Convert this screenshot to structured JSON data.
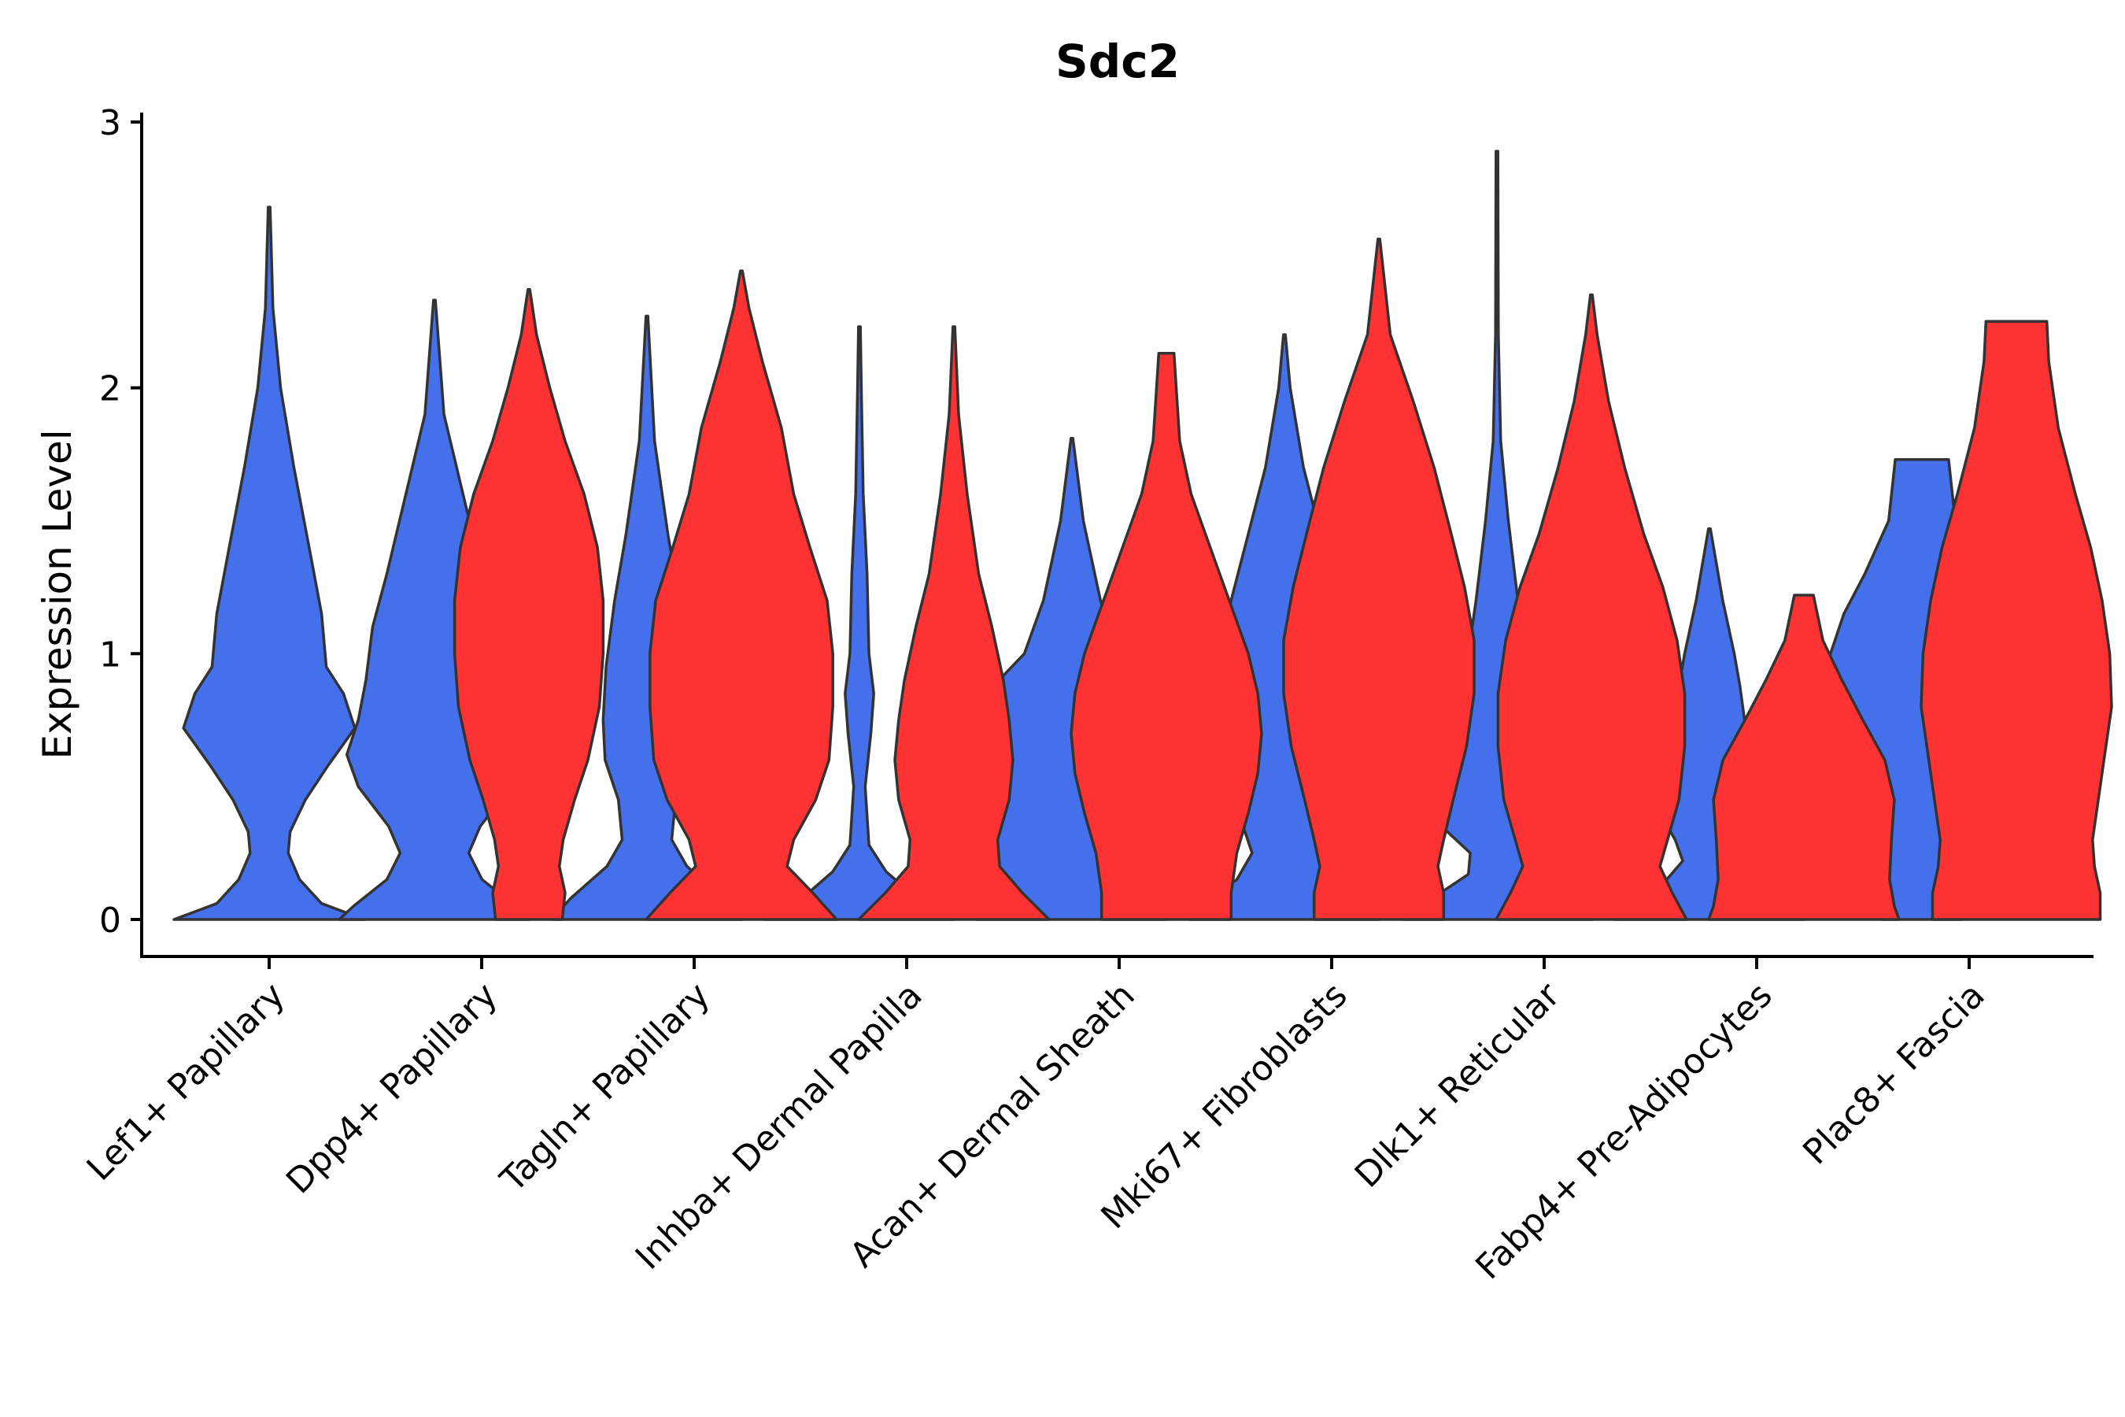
{
  "chart_data": {
    "type": "violin",
    "title": "Sdc2",
    "xlabel": "",
    "ylabel": "Expression Level",
    "ylim": [
      -0.14,
      3.05
    ],
    "yticks": [
      0,
      1,
      2,
      3
    ],
    "grid": false,
    "legend": "none",
    "groups": [
      "Lef1+ Papillary",
      "Dpp4+ Papillary",
      "Tagln+ Papillary",
      "Inhba+ Dermal Papilla",
      "Acan+ Dermal Sheath",
      "Mki67+ Fibroblasts",
      "Dlk1+ Reticular",
      "Fabp4+ Pre-Adipocytes",
      "Plac8+ Fascia"
    ],
    "series": [
      {
        "name": "blue",
        "color": "#4470EC",
        "violins": [
          {
            "group": "Lef1+ Papillary",
            "max": 2.68,
            "profile": [
              [
                0,
                1.0
              ],
              [
                0.06,
                0.55
              ],
              [
                0.15,
                0.32
              ],
              [
                0.25,
                0.2
              ],
              [
                0.33,
                0.22
              ],
              [
                0.45,
                0.38
              ],
              [
                0.58,
                0.62
              ],
              [
                0.72,
                0.9
              ],
              [
                0.85,
                0.78
              ],
              [
                0.95,
                0.6
              ],
              [
                1.15,
                0.55
              ],
              [
                1.4,
                0.42
              ],
              [
                1.7,
                0.26
              ],
              [
                2.0,
                0.12
              ],
              [
                2.3,
                0.04
              ],
              [
                2.68,
                0.01
              ]
            ]
          },
          {
            "group": "Dpp4+ Papillary",
            "max": 2.33,
            "profile": [
              [
                0,
                1.0
              ],
              [
                0.05,
                0.85
              ],
              [
                0.15,
                0.5
              ],
              [
                0.25,
                0.36
              ],
              [
                0.35,
                0.48
              ],
              [
                0.5,
                0.8
              ],
              [
                0.62,
                0.92
              ],
              [
                0.75,
                0.8
              ],
              [
                0.9,
                0.72
              ],
              [
                1.1,
                0.65
              ],
              [
                1.3,
                0.5
              ],
              [
                1.6,
                0.3
              ],
              [
                1.9,
                0.1
              ],
              [
                2.33,
                0.01
              ]
            ]
          },
          {
            "group": "Tagln+ Papillary",
            "max": 2.27,
            "profile": [
              [
                0,
                1.0
              ],
              [
                0.08,
                0.8
              ],
              [
                0.2,
                0.42
              ],
              [
                0.3,
                0.26
              ],
              [
                0.45,
                0.3
              ],
              [
                0.6,
                0.44
              ],
              [
                0.75,
                0.46
              ],
              [
                0.95,
                0.43
              ],
              [
                1.2,
                0.34
              ],
              [
                1.45,
                0.22
              ],
              [
                1.8,
                0.08
              ],
              [
                2.27,
                0.01
              ]
            ]
          },
          {
            "group": "Inhba+ Dermal Papilla",
            "max": 2.23,
            "profile": [
              [
                0,
                1.0
              ],
              [
                0.08,
                0.6
              ],
              [
                0.18,
                0.28
              ],
              [
                0.28,
                0.1
              ],
              [
                0.5,
                0.06
              ],
              [
                0.7,
                0.12
              ],
              [
                0.85,
                0.15
              ],
              [
                1.0,
                0.1
              ],
              [
                1.3,
                0.08
              ],
              [
                1.6,
                0.04
              ],
              [
                2.0,
                0.02
              ],
              [
                2.23,
                0.01
              ]
            ]
          },
          {
            "group": "Acan+ Dermal Sheath",
            "max": 1.81,
            "profile": [
              [
                0,
                1.0
              ],
              [
                0.1,
                0.95
              ],
              [
                0.2,
                0.85
              ],
              [
                0.3,
                0.8
              ],
              [
                0.4,
                0.9
              ],
              [
                0.55,
                1.0
              ],
              [
                0.7,
                1.05
              ],
              [
                0.85,
                0.9
              ],
              [
                1.0,
                0.5
              ],
              [
                1.2,
                0.3
              ],
              [
                1.5,
                0.12
              ],
              [
                1.81,
                0.01
              ]
            ]
          },
          {
            "group": "Mki67+ Fibroblasts",
            "max": 2.2,
            "profile": [
              [
                0,
                1.0
              ],
              [
                0.05,
                0.9
              ],
              [
                0.15,
                0.5
              ],
              [
                0.25,
                0.34
              ],
              [
                0.4,
                0.48
              ],
              [
                0.55,
                0.66
              ],
              [
                0.7,
                0.72
              ],
              [
                0.85,
                0.72
              ],
              [
                1.0,
                0.68
              ],
              [
                1.2,
                0.56
              ],
              [
                1.45,
                0.38
              ],
              [
                1.7,
                0.2
              ],
              [
                2.0,
                0.06
              ],
              [
                2.2,
                0.01
              ]
            ]
          },
          {
            "group": "Dlk1+ Reticular",
            "max": 2.89,
            "profile": [
              [
                0,
                1.0
              ],
              [
                0.07,
                0.72
              ],
              [
                0.17,
                0.3
              ],
              [
                0.25,
                0.28
              ],
              [
                0.35,
                0.58
              ],
              [
                0.48,
                0.62
              ],
              [
                0.62,
                0.46
              ],
              [
                0.8,
                0.36
              ],
              [
                1.0,
                0.3
              ],
              [
                1.2,
                0.22
              ],
              [
                1.5,
                0.12
              ],
              [
                1.8,
                0.04
              ],
              [
                2.2,
                0.015
              ],
              [
                2.89,
                0.01
              ]
            ]
          },
          {
            "group": "Fabp4+ Pre-Adipocytes",
            "max": 1.47,
            "profile": [
              [
                0,
                1.0
              ],
              [
                0.06,
                0.85
              ],
              [
                0.15,
                0.45
              ],
              [
                0.22,
                0.28
              ],
              [
                0.3,
                0.36
              ],
              [
                0.45,
                0.6
              ],
              [
                0.58,
                0.52
              ],
              [
                0.72,
                0.38
              ],
              [
                0.88,
                0.32
              ],
              [
                1.0,
                0.26
              ],
              [
                1.2,
                0.14
              ],
              [
                1.47,
                0.01
              ]
            ]
          },
          {
            "group": "Plac8+ Fascia",
            "max": 1.73,
            "profile": [
              [
                0,
                0.42
              ],
              [
                0.1,
                0.42
              ],
              [
                0.25,
                0.44
              ],
              [
                0.4,
                0.58
              ],
              [
                0.55,
                0.76
              ],
              [
                0.7,
                0.92
              ],
              [
                0.85,
                0.98
              ],
              [
                1.0,
                0.96
              ],
              [
                1.15,
                0.82
              ],
              [
                1.3,
                0.6
              ],
              [
                1.5,
                0.35
              ],
              [
                1.73,
                0.28
              ]
            ]
          }
        ]
      },
      {
        "name": "red",
        "color": "#FF3233",
        "violins": [
          {
            "group": "Dpp4+ Papillary",
            "max": 2.37,
            "profile": [
              [
                0,
                0.35
              ],
              [
                0.1,
                0.38
              ],
              [
                0.2,
                0.32
              ],
              [
                0.3,
                0.36
              ],
              [
                0.45,
                0.48
              ],
              [
                0.6,
                0.62
              ],
              [
                0.8,
                0.74
              ],
              [
                1.0,
                0.78
              ],
              [
                1.2,
                0.78
              ],
              [
                1.4,
                0.72
              ],
              [
                1.6,
                0.58
              ],
              [
                1.8,
                0.38
              ],
              [
                2.0,
                0.22
              ],
              [
                2.2,
                0.08
              ],
              [
                2.37,
                0.01
              ]
            ]
          },
          {
            "group": "Tagln+ Papillary",
            "max": 2.44,
            "profile": [
              [
                0,
                1.0
              ],
              [
                0.1,
                0.75
              ],
              [
                0.2,
                0.48
              ],
              [
                0.3,
                0.55
              ],
              [
                0.45,
                0.78
              ],
              [
                0.6,
                0.92
              ],
              [
                0.8,
                0.96
              ],
              [
                1.0,
                0.96
              ],
              [
                1.2,
                0.9
              ],
              [
                1.4,
                0.72
              ],
              [
                1.6,
                0.55
              ],
              [
                1.85,
                0.42
              ],
              [
                2.1,
                0.22
              ],
              [
                2.3,
                0.08
              ],
              [
                2.44,
                0.01
              ]
            ]
          },
          {
            "group": "Inhba+ Dermal Papilla",
            "max": 2.23,
            "profile": [
              [
                0,
                1.0
              ],
              [
                0.1,
                0.72
              ],
              [
                0.2,
                0.48
              ],
              [
                0.3,
                0.46
              ],
              [
                0.45,
                0.58
              ],
              [
                0.6,
                0.62
              ],
              [
                0.75,
                0.58
              ],
              [
                0.9,
                0.52
              ],
              [
                1.1,
                0.4
              ],
              [
                1.3,
                0.26
              ],
              [
                1.6,
                0.14
              ],
              [
                1.9,
                0.05
              ],
              [
                2.23,
                0.01
              ]
            ]
          },
          {
            "group": "Acan+ Dermal Sheath",
            "max": 2.13,
            "profile": [
              [
                0,
                0.68
              ],
              [
                0.1,
                0.68
              ],
              [
                0.25,
                0.74
              ],
              [
                0.4,
                0.86
              ],
              [
                0.55,
                0.96
              ],
              [
                0.7,
                1.0
              ],
              [
                0.85,
                0.96
              ],
              [
                1.0,
                0.86
              ],
              [
                1.2,
                0.66
              ],
              [
                1.4,
                0.46
              ],
              [
                1.6,
                0.26
              ],
              [
                1.8,
                0.14
              ],
              [
                2.13,
                0.08
              ]
            ]
          },
          {
            "group": "Mki67+ Fibroblasts",
            "max": 2.56,
            "profile": [
              [
                0,
                0.68
              ],
              [
                0.1,
                0.68
              ],
              [
                0.2,
                0.62
              ],
              [
                0.3,
                0.68
              ],
              [
                0.45,
                0.78
              ],
              [
                0.65,
                0.92
              ],
              [
                0.85,
                1.0
              ],
              [
                1.05,
                1.0
              ],
              [
                1.25,
                0.9
              ],
              [
                1.45,
                0.76
              ],
              [
                1.7,
                0.58
              ],
              [
                1.95,
                0.36
              ],
              [
                2.2,
                0.12
              ],
              [
                2.56,
                0.01
              ]
            ]
          },
          {
            "group": "Dlk1+ Reticular",
            "max": 2.35,
            "profile": [
              [
                0,
                1.0
              ],
              [
                0.1,
                0.85
              ],
              [
                0.2,
                0.72
              ],
              [
                0.3,
                0.8
              ],
              [
                0.45,
                0.92
              ],
              [
                0.65,
                0.98
              ],
              [
                0.85,
                0.98
              ],
              [
                1.05,
                0.9
              ],
              [
                1.25,
                0.75
              ],
              [
                1.45,
                0.55
              ],
              [
                1.7,
                0.35
              ],
              [
                1.95,
                0.18
              ],
              [
                2.2,
                0.06
              ],
              [
                2.35,
                0.01
              ]
            ]
          },
          {
            "group": "Fabp4+ Pre-Adipocytes",
            "max": 1.22,
            "profile": [
              [
                0,
                1.0
              ],
              [
                0.05,
                0.95
              ],
              [
                0.15,
                0.9
              ],
              [
                0.3,
                0.92
              ],
              [
                0.45,
                0.95
              ],
              [
                0.6,
                0.85
              ],
              [
                0.75,
                0.62
              ],
              [
                0.9,
                0.4
              ],
              [
                1.05,
                0.2
              ],
              [
                1.22,
                0.1
              ]
            ]
          },
          {
            "group": "Plac8+ Fascia",
            "max": 2.25,
            "profile": [
              [
                0,
                0.88
              ],
              [
                0.1,
                0.88
              ],
              [
                0.2,
                0.82
              ],
              [
                0.3,
                0.8
              ],
              [
                0.45,
                0.86
              ],
              [
                0.6,
                0.92
              ],
              [
                0.8,
                1.0
              ],
              [
                1.0,
                0.98
              ],
              [
                1.2,
                0.9
              ],
              [
                1.4,
                0.78
              ],
              [
                1.6,
                0.62
              ],
              [
                1.85,
                0.44
              ],
              [
                2.1,
                0.34
              ],
              [
                2.25,
                0.32
              ]
            ]
          }
        ]
      }
    ]
  }
}
